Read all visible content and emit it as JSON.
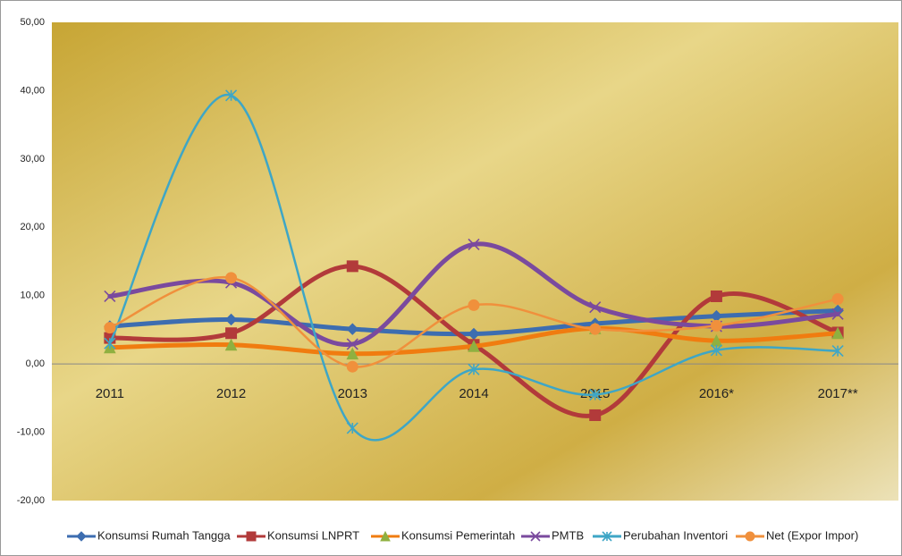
{
  "chart_data": {
    "type": "line",
    "categories": [
      "2011",
      "2012",
      "2013",
      "2014",
      "2015",
      "2016*",
      "2017**"
    ],
    "ylim": [
      -20,
      50
    ],
    "yticks": [
      {
        "value": -20,
        "label": "-20,00"
      },
      {
        "value": -10,
        "label": "-10,00"
      },
      {
        "value": 0,
        "label": "0,00"
      },
      {
        "value": 10,
        "label": "10,00"
      },
      {
        "value": 20,
        "label": "20,00"
      },
      {
        "value": 30,
        "label": "30,00"
      },
      {
        "value": 40,
        "label": "40,00"
      },
      {
        "value": 50,
        "label": "50,00"
      }
    ],
    "smooth": true,
    "legend": "bottom",
    "series": [
      {
        "name": "Konsumsi Rumah Tangga",
        "color": "#3d6db0",
        "marker": "diamond",
        "width": 5,
        "values": [
          5.5,
          6.5,
          5.1,
          4.4,
          5.9,
          7.0,
          7.8
        ]
      },
      {
        "name": "Konsumsi LNPRT",
        "color": "#b23a3a",
        "marker": "square",
        "width": 5,
        "values": [
          3.8,
          4.5,
          14.3,
          2.8,
          -7.5,
          9.9,
          4.6
        ]
      },
      {
        "name": "Konsumsi Pemerintah",
        "color": "#f07c10",
        "markerColor": "#8fb040",
        "marker": "triangle",
        "width": 5,
        "values": [
          2.4,
          2.8,
          1.5,
          2.6,
          5.2,
          3.4,
          4.5
        ]
      },
      {
        "name": "PMTB",
        "color": "#7a4a9e",
        "marker": "x",
        "width": 5,
        "values": [
          9.9,
          11.9,
          2.9,
          17.5,
          8.3,
          5.5,
          7.3
        ]
      },
      {
        "name": "Perubahan Inventori",
        "color": "#3ea6c6",
        "marker": "star",
        "width": 2.5,
        "values": [
          3.0,
          39.3,
          -9.4,
          -0.8,
          -4.5,
          2.0,
          1.9
        ]
      },
      {
        "name": "Net (Expor Impor)",
        "color": "#f0903c",
        "marker": "circle",
        "width": 2.5,
        "values": [
          5.3,
          12.6,
          -0.4,
          8.6,
          5.1,
          5.6,
          9.5
        ]
      }
    ]
  }
}
